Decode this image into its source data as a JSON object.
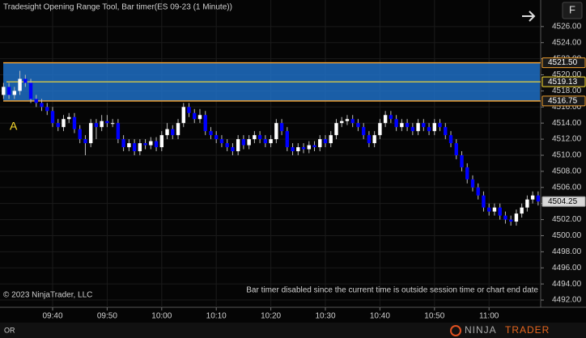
{
  "chart_data": {
    "type": "candlestick",
    "title": "Tradesight Opening Range Tool, Bar timer(ES 09-23 (1 Minute))",
    "categories": [
      null,
      null,
      null,
      null,
      null,
      null,
      null,
      null,
      null,
      "09:40",
      null,
      null,
      null,
      null,
      null,
      null,
      null,
      null,
      null,
      "09:50",
      null,
      null,
      null,
      null,
      null,
      null,
      null,
      null,
      null,
      "10:00",
      null,
      null,
      null,
      null,
      null,
      null,
      null,
      null,
      null,
      "10:10",
      null,
      null,
      null,
      null,
      null,
      null,
      null,
      null,
      null,
      "10:20",
      null,
      null,
      null,
      null,
      null,
      null,
      null,
      null,
      null,
      "10:30",
      null,
      null,
      null,
      null,
      null,
      null,
      null,
      null,
      null,
      "10:40",
      null,
      null,
      null,
      null,
      null,
      null,
      null,
      null,
      null,
      "10:50",
      null,
      null,
      null,
      null,
      null,
      null,
      null,
      null,
      null,
      "11:00",
      null,
      null,
      null,
      null,
      null,
      null,
      null,
      null,
      null
    ],
    "open": [
      4517.5,
      4518.5,
      4517.5,
      4518,
      4519.5,
      4519,
      4517,
      4516.5,
      4516,
      4515.5,
      4514,
      4513.5,
      4514.5,
      4514.75,
      4513.25,
      4512,
      4511.5,
      4514,
      4513.5,
      4514.25,
      4514,
      4514,
      4512,
      4511,
      4511.5,
      4510.5,
      4511.5,
      4511.25,
      4511.75,
      4511,
      4512.5,
      4513.25,
      4512.5,
      4514,
      4516,
      4515.25,
      4514.5,
      4515,
      4513,
      4512.5,
      4512,
      4511.5,
      4511,
      4510.5,
      4512,
      4511.25,
      4512,
      4512.5,
      4512,
      4511.5,
      4512,
      4514,
      4513,
      4511,
      4510.5,
      4511,
      4510.75,
      4511.25,
      4511,
      4512,
      4511.5,
      4512.5,
      4514,
      4514.25,
      4514.5,
      4514,
      4513.5,
      4512.5,
      4511.5,
      4512.5,
      4514,
      4515,
      4514.5,
      4513.5,
      4514,
      4513.5,
      4513,
      4514,
      4513.5,
      4513,
      4514,
      4513.5,
      4512.5,
      4511.5,
      4510,
      4508.5,
      4507,
      4506,
      4505,
      4503.5,
      4503,
      4503.5,
      4502.5,
      4502,
      4501.75,
      4502.75,
      4503.5,
      4504.5,
      4505
    ],
    "high": [
      4519,
      4519,
      4518.5,
      4520.5,
      4520,
      4519.5,
      4517.5,
      4517,
      4516.5,
      4516,
      4514.5,
      4515,
      4515.25,
      4515.25,
      4513.75,
      4512.5,
      4514.5,
      4514.5,
      4515,
      4515,
      4514.5,
      4514.5,
      4512.5,
      4512,
      4512,
      4512,
      4512,
      4512.25,
      4512.25,
      4513,
      4514,
      4513.75,
      4514.5,
      4516.5,
      4516.5,
      4515.75,
      4515.75,
      4515.5,
      4513.5,
      4513,
      4512.5,
      4512,
      4511.5,
      4512.5,
      4512.5,
      4512.5,
      4513,
      4513,
      4512.5,
      4512.5,
      4514.5,
      4514.5,
      4513.5,
      4511.5,
      4511.5,
      4511.5,
      4511.75,
      4511.75,
      4512.5,
      4512.5,
      4513,
      4514.5,
      4514.75,
      4515,
      4515,
      4514.5,
      4514,
      4513,
      4513,
      4514.5,
      4515.5,
      4515.5,
      4515,
      4514.5,
      4514.5,
      4514,
      4514.5,
      4514.5,
      4514,
      4514.5,
      4514.5,
      4514,
      4513,
      4512,
      4510.5,
      4509,
      4507.5,
      4506.5,
      4505.5,
      4504,
      4504,
      4504,
      4503,
      4502.5,
      4503.25,
      4504,
      4505,
      4505.5,
      4505.5
    ],
    "low": [
      4517,
      4517,
      4517,
      4517.5,
      4518.5,
      4516.5,
      4516,
      4515.5,
      4515,
      4513.5,
      4513,
      4513,
      4514,
      4512.75,
      4511.5,
      4510,
      4511,
      4512,
      4513,
      4513.5,
      4513.5,
      4511.5,
      4510.5,
      4510.5,
      4510,
      4510,
      4510.75,
      4510.75,
      4510.5,
      4510.5,
      4512,
      4512,
      4512,
      4513.5,
      4514.75,
      4514,
      4514,
      4512.5,
      4512,
      4511.5,
      4511,
      4510.5,
      4510,
      4510,
      4510.75,
      4510.75,
      4511.5,
      4511.5,
      4511,
      4511,
      4511.5,
      4512.5,
      4510.5,
      4510,
      4510,
      4510.25,
      4510.25,
      4510.5,
      4510.5,
      4511,
      4511,
      4512,
      4513.5,
      4513.75,
      4513.5,
      4513,
      4512,
      4511,
      4511,
      4512,
      4513.5,
      4514,
      4513,
      4513,
      4513,
      4512.5,
      4512.5,
      4513,
      4512.5,
      4512.5,
      4513,
      4512,
      4511,
      4509.5,
      4508,
      4506.5,
      4505.5,
      4504.5,
      4503,
      4502.5,
      4502.5,
      4502,
      4501.5,
      4501.25,
      4501.25,
      4502.25,
      4503,
      4504,
      4503.75
    ],
    "close": [
      4518.5,
      4517.5,
      4518,
      4519.5,
      4519,
      4517,
      4516.5,
      4516,
      4515.5,
      4514,
      4513.5,
      4514.5,
      4514.75,
      4513.25,
      4512,
      4511.5,
      4514,
      4513.5,
      4514.25,
      4514,
      4514,
      4512,
      4511,
      4511.5,
      4510.5,
      4511.5,
      4511.25,
      4511.75,
      4511,
      4512.5,
      4513.25,
      4512.5,
      4514,
      4516,
      4515.25,
      4514.5,
      4515,
      4513,
      4512.5,
      4512,
      4511.5,
      4511,
      4510.5,
      4512,
      4511.25,
      4512,
      4512.5,
      4512,
      4511.5,
      4512,
      4514,
      4513,
      4511,
      4510.5,
      4511,
      4510.75,
      4511.25,
      4511,
      4512,
      4511.5,
      4512.5,
      4514,
      4514.25,
      4514.5,
      4514,
      4513.5,
      4512.5,
      4511.5,
      4512.5,
      4514,
      4515,
      4514.5,
      4513.5,
      4514,
      4513.5,
      4513,
      4514,
      4513.5,
      4513,
      4514,
      4513.5,
      4512.5,
      4511.5,
      4510,
      4508.5,
      4507,
      4506,
      4505,
      4503.5,
      4503,
      4503.5,
      4502.5,
      4502,
      4501.75,
      4502.75,
      4503.5,
      4504.5,
      4505,
      4504.25
    ],
    "up_color": "#ffffff",
    "down_color": "#0000ff",
    "ylim": [
      4491.1,
      4529.3
    ],
    "yticks": [
      {
        "value": 4526,
        "label": "4526.00"
      },
      {
        "value": 4524,
        "label": "4524.00"
      },
      {
        "value": 4522,
        "label": "4522.00"
      },
      {
        "value": 4520,
        "label": "4520.00"
      },
      {
        "value": 4518,
        "label": "4518.00"
      },
      {
        "value": 4516,
        "label": "4516.00"
      },
      {
        "value": 4514,
        "label": "4514.00"
      },
      {
        "value": 4512,
        "label": "4512.00"
      },
      {
        "value": 4510,
        "label": "4510.00"
      },
      {
        "value": 4508,
        "label": "4508.00"
      },
      {
        "value": 4506,
        "label": "4506.00"
      },
      {
        "value": 4504,
        "label": "4504.00"
      },
      {
        "value": 4502,
        "label": "4502.00"
      },
      {
        "value": 4500,
        "label": "4500.00"
      },
      {
        "value": 4498,
        "label": "4498.00"
      },
      {
        "value": 4496,
        "label": "4496.00"
      },
      {
        "value": 4494,
        "label": "4494.00"
      },
      {
        "value": 4492,
        "label": "4492.00"
      }
    ],
    "grid": true,
    "opening_range": {
      "label": "A",
      "values": [
        4521.5,
        4519.13,
        4516.75
      ],
      "value_labels": [
        "4521.50",
        "4519.13",
        "4516.75"
      ],
      "fill": "#1e6fc4",
      "border_color": "#f0a030",
      "mid_color": "#ffe030"
    },
    "last_price": {
      "value": 4504.25,
      "label": "4504.25"
    },
    "copyright": "© 2023 NinjaTrader, LLC",
    "message": "Bar timer disabled since the current time is outside session time or chart end date",
    "tab": "OR",
    "button": "F",
    "logo": [
      "NINJA",
      "TRADER"
    ]
  }
}
